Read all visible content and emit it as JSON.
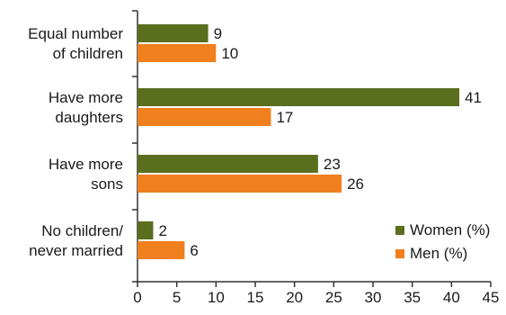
{
  "chart_data": {
    "type": "bar",
    "orientation": "horizontal",
    "title": "",
    "xlabel": "",
    "ylabel": "",
    "categories": [
      [
        "Equal number",
        "of children"
      ],
      [
        "Have more",
        "daughters"
      ],
      [
        "Have more",
        "sons"
      ],
      [
        "No children/",
        "never married"
      ]
    ],
    "series": [
      {
        "name": "Women (%)",
        "values": [
          9,
          41,
          23,
          2
        ],
        "color": "#5a6e1e"
      },
      {
        "name": "Men (%)",
        "values": [
          10,
          17,
          26,
          6
        ],
        "color": "#f07f1d"
      }
    ],
    "xlim": [
      0,
      45
    ],
    "xticks": [
      0,
      5,
      10,
      15,
      20,
      25,
      30,
      35,
      40,
      45
    ],
    "grid": false,
    "legend_position": "bottom-right",
    "show_value_labels": true
  }
}
